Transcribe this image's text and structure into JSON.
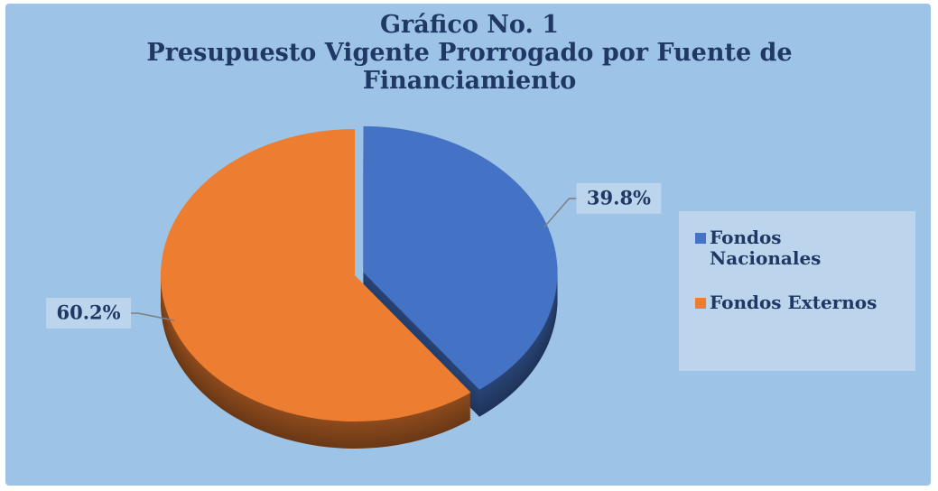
{
  "chart_data": {
    "type": "pie",
    "title": "Gráfico No. 1",
    "subtitle": "Presupuesto  Vigente  Prorrogado por Fuente de Financiamiento",
    "categories": [
      "Fondos Nacionales",
      "Fondos Externos"
    ],
    "values": [
      39.8,
      60.2
    ],
    "value_labels": [
      "39.8%",
      "60.2%"
    ],
    "colors": [
      "#4472c4",
      "#ed7d31"
    ],
    "legend": "right"
  }
}
